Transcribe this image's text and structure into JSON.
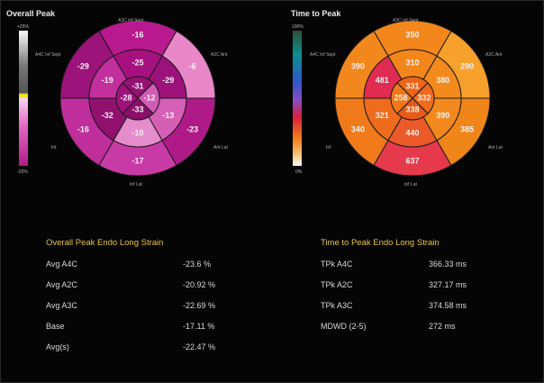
{
  "left_panel": {
    "title": "Overall Peak",
    "scale_max": "+25%",
    "scale_min": "-25%",
    "wall_labels": {
      "top": "A3C Inf Sept",
      "top_left": "A4C Inf Sept",
      "top_right": "A2C Ant",
      "left": "Inf",
      "right": "Ant Lat",
      "bottom": "Inf Lat"
    },
    "segments": {
      "basal": [
        "-16",
        "-6",
        "-23",
        "-17",
        "-16",
        "-29"
      ],
      "mid": [
        "-25",
        "-29",
        "-13",
        "-10",
        "-32",
        "-19"
      ],
      "apical": [
        "-31",
        "-12",
        "-33",
        "-28"
      ]
    },
    "colors": {
      "basal": [
        "#b8198f",
        "#e987c9",
        "#b01a88",
        "#c83ba6",
        "#c02e9c",
        "#9c137b"
      ],
      "mid": [
        "#a7117f",
        "#9c127a",
        "#d65fb6",
        "#e58ccc",
        "#92116f",
        "#c42f9e"
      ],
      "apical": [
        "#951173",
        "#d35bb5",
        "#8a0f6a",
        "#9e127c"
      ]
    }
  },
  "right_panel": {
    "title": "Time to Peak",
    "scale_max": "100%",
    "scale_min": "0%",
    "wall_labels": {
      "top": "A3C Inf Sept",
      "top_left": "A4C Inf Sept",
      "top_right": "A2C Ant",
      "left": "Inf",
      "right": "Ant Lat",
      "bottom": "Inf Lat"
    },
    "segments": {
      "basal": [
        "350",
        "290",
        "385",
        "637",
        "340",
        "390"
      ],
      "mid": [
        "310",
        "380",
        "390",
        "440",
        "321",
        "481"
      ],
      "apical": [
        "331",
        "332",
        "338",
        "258"
      ]
    },
    "colors": {
      "basal": [
        "#f3871b",
        "#f7a02c",
        "#f08519",
        "#e63a4c",
        "#f07a1a",
        "#f2881d"
      ],
      "mid": [
        "#f3861a",
        "#f38a1c",
        "#f3891c",
        "#ec5a2a",
        "#ef6c1c",
        "#e02b52"
      ],
      "apical": [
        "#ee6418",
        "#ef6a1b",
        "#ea5a16",
        "#f07818"
      ]
    }
  },
  "strain_table": {
    "title": "Overall Peak Endo Long Strain",
    "rows": [
      {
        "label": "Avg A4C",
        "value": "-23.6 %"
      },
      {
        "label": "Avg A2C",
        "value": "-20.92 %"
      },
      {
        "label": "Avg A3C",
        "value": "-22.69 %"
      },
      {
        "label": "Base",
        "value": "-17.11 %"
      },
      {
        "label": "Avg(s)",
        "value": "-22.47 %"
      }
    ]
  },
  "time_table": {
    "title": "Time to Peak Endo Long Strain",
    "rows": [
      {
        "label": "TPk A4C",
        "value": "366.33 ms"
      },
      {
        "label": "TPk A2C",
        "value": "327.17 ms"
      },
      {
        "label": "TPk A3C",
        "value": "374.58 ms"
      },
      {
        "label": "MDWD (2-5)",
        "value": "272 ms"
      }
    ]
  }
}
